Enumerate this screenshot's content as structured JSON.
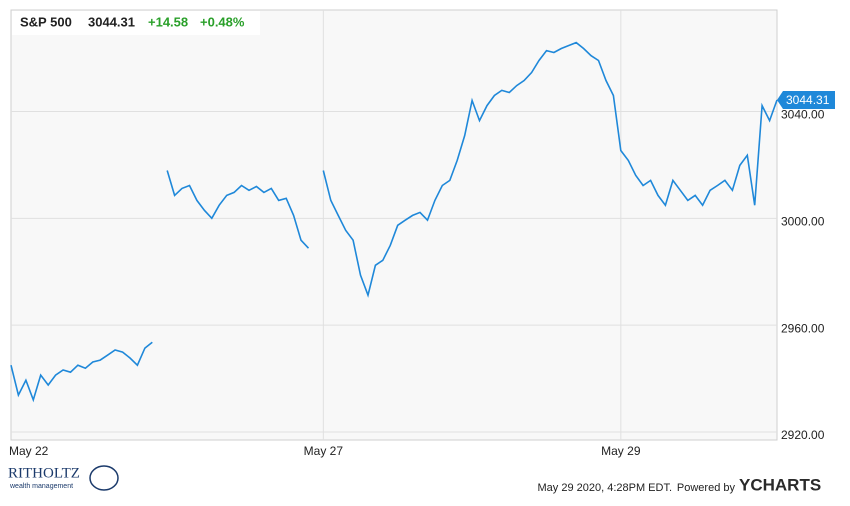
{
  "chart_data": {
    "type": "line",
    "header": {
      "name": "S&P 500",
      "price": "3044.31",
      "change": "+14.58",
      "change_pct": "+0.48%"
    },
    "categories": [
      "May 22",
      null,
      null,
      null,
      null,
      null,
      null,
      null,
      null,
      null,
      null,
      null,
      null,
      null,
      null,
      null,
      null,
      null,
      null,
      null,
      null,
      null,
      null,
      null,
      null,
      null,
      null,
      null,
      null,
      null,
      null,
      null,
      null,
      null,
      null,
      null,
      null,
      null,
      null,
      null,
      null,
      null,
      "May 27",
      null,
      null,
      null,
      null,
      null,
      null,
      null,
      null,
      null,
      null,
      null,
      null,
      null,
      null,
      null,
      null,
      null,
      null,
      null,
      null,
      null,
      null,
      null,
      null,
      null,
      null,
      null,
      null,
      null,
      null,
      null,
      null,
      null,
      null,
      null,
      null,
      null,
      null,
      null,
      "May 29",
      null,
      null,
      null,
      null,
      null,
      null,
      null,
      null,
      null,
      null,
      null,
      null,
      null,
      null,
      null,
      null,
      null,
      null,
      null,
      null,
      null
    ],
    "values": [
      2945.0,
      2933.8,
      2939.4,
      2932.0,
      2941.3,
      2937.6,
      2941.3,
      2943.2,
      2942.4,
      2945.0,
      2943.9,
      2946.2,
      2946.9,
      2948.8,
      2950.7,
      2949.9,
      2947.7,
      2945.0,
      2951.4,
      2953.6,
      null,
      3017.9,
      3008.6,
      3011.2,
      3012.3,
      3006.7,
      3003.0,
      3000.0,
      3004.9,
      3008.6,
      3009.7,
      3012.3,
      3010.5,
      3011.9,
      3009.7,
      3011.2,
      3006.7,
      3007.5,
      3001.1,
      2991.8,
      2988.8,
      null,
      3017.9,
      3006.7,
      3001.1,
      2995.5,
      2991.8,
      2978.7,
      2971.2,
      2982.4,
      2984.3,
      2989.9,
      2997.4,
      2999.3,
      3001.1,
      3002.2,
      2999.3,
      3006.7,
      3012.3,
      3014.2,
      3021.7,
      3031.0,
      3044.1,
      3036.6,
      3042.2,
      3046.0,
      3047.9,
      3047.1,
      3049.7,
      3051.6,
      3054.6,
      3059.1,
      3062.8,
      3062.1,
      3063.6,
      3064.7,
      3065.8,
      3063.6,
      3060.9,
      3059.1,
      3051.6,
      3046.0,
      3025.4,
      3021.7,
      3016.1,
      3012.3,
      3014.2,
      3008.6,
      3004.9,
      3014.2,
      3010.5,
      3006.7,
      3008.6,
      3004.9,
      3010.5,
      3012.3,
      3014.2,
      3010.5,
      3019.8,
      3023.6,
      3004.9,
      3042.2,
      3036.6,
      3044.31
    ],
    "color": "#1f88d9",
    "ylim": [
      2917,
      3078
    ],
    "yticks": [
      {
        "value": 2920,
        "label": "2920.00"
      },
      {
        "value": 2960,
        "label": "2960.00"
      },
      {
        "value": 3000,
        "label": "3000.00"
      },
      {
        "value": 3040,
        "label": "3040.00"
      }
    ],
    "grid": true
  },
  "footer": {
    "timestamp": "May 29 2020, 4:28PM EDT.",
    "powered": "Powered by",
    "brand": "YCHARTS"
  },
  "logo": {
    "name": "RITHOLTZ",
    "sub": "wealth management"
  }
}
